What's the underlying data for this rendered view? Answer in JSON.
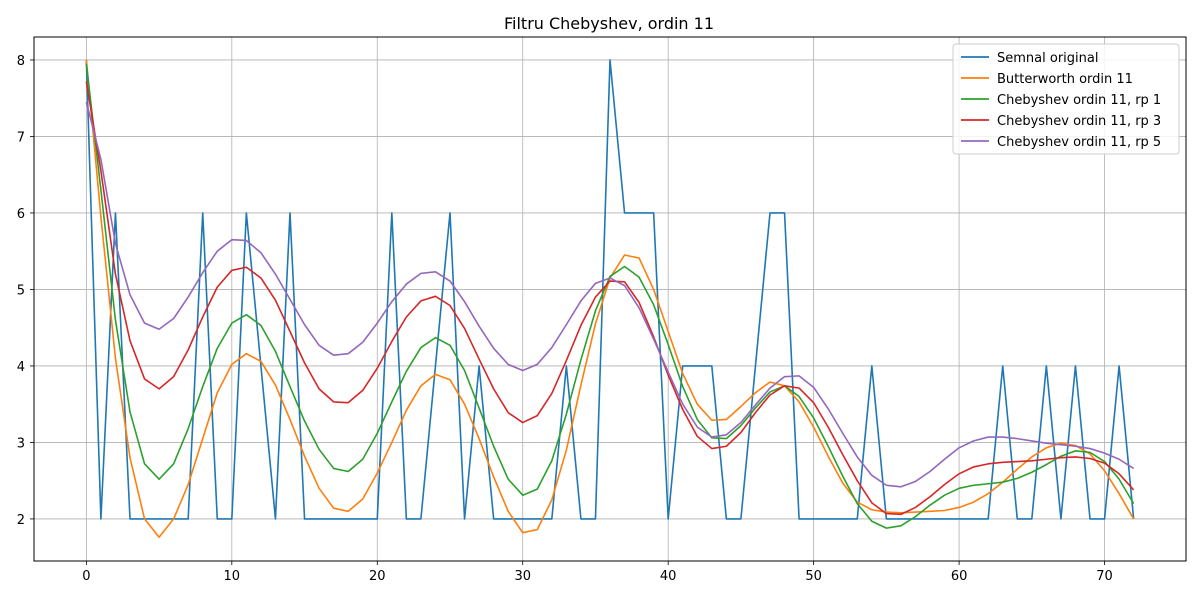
{
  "chart_data": {
    "type": "line",
    "title": "Filtru Chebyshev, ordin 11",
    "xlabel": "",
    "ylabel": "",
    "xlim": [
      -3.6,
      75.6
    ],
    "ylim": [
      1.45,
      8.3
    ],
    "xticks": [
      0,
      10,
      20,
      30,
      40,
      50,
      60,
      70
    ],
    "yticks": [
      2,
      3,
      4,
      5,
      6,
      7,
      8
    ],
    "grid": true,
    "legend_position": "top-right",
    "series": [
      {
        "name": "Semnal original",
        "color": "#1f77b4",
        "x": [
          0,
          1,
          2,
          3,
          4,
          5,
          6,
          7,
          8,
          9,
          10,
          11,
          12,
          13,
          14,
          15,
          16,
          17,
          18,
          19,
          20,
          21,
          22,
          23,
          24,
          25,
          26,
          27,
          28,
          29,
          30,
          31,
          32,
          33,
          34,
          35,
          36,
          37,
          38,
          39,
          40,
          41,
          42,
          43,
          44,
          45,
          46,
          47,
          48,
          49,
          50,
          51,
          52,
          53,
          54,
          55,
          56,
          57,
          58,
          59,
          60,
          61,
          62,
          63,
          64,
          65,
          66,
          67,
          68,
          69,
          70,
          71,
          72
        ],
        "y": [
          8,
          2,
          6,
          2,
          2,
          2,
          2,
          2,
          6,
          2,
          2,
          6,
          4,
          2,
          6,
          2,
          2,
          2,
          2,
          2,
          2,
          6,
          2,
          2,
          4,
          6,
          2,
          4,
          2,
          2,
          2,
          2,
          2,
          4,
          2,
          2,
          8,
          6,
          6,
          6,
          2,
          4,
          4,
          4,
          2,
          2,
          4,
          6,
          6,
          2,
          2,
          2,
          2,
          2,
          4,
          2,
          2,
          2,
          2,
          2,
          2,
          2,
          2,
          4,
          2,
          2,
          4,
          2,
          4,
          2,
          2,
          4,
          2
        ]
      },
      {
        "name": "Butterworth ordin 11",
        "color": "#ff7f0e",
        "x": [
          0,
          1,
          2,
          3,
          4,
          5,
          6,
          7,
          8,
          9,
          10,
          11,
          12,
          13,
          14,
          15,
          16,
          17,
          18,
          19,
          20,
          21,
          22,
          23,
          24,
          25,
          26,
          27,
          28,
          29,
          30,
          31,
          32,
          33,
          34,
          35,
          36,
          37,
          38,
          39,
          40,
          41,
          42,
          43,
          44,
          45,
          46,
          47,
          48,
          49,
          50,
          51,
          52,
          53,
          54,
          55,
          56,
          57,
          58,
          59,
          60,
          61,
          62,
          63,
          64,
          65,
          66,
          67,
          68,
          69,
          70,
          71,
          72
        ],
        "y": [
          8.0,
          5.95,
          4.1,
          2.8,
          2.0,
          1.76,
          2.0,
          2.45,
          3.05,
          3.65,
          4.02,
          4.16,
          4.06,
          3.75,
          3.3,
          2.82,
          2.4,
          2.14,
          2.1,
          2.26,
          2.6,
          3.0,
          3.42,
          3.74,
          3.89,
          3.82,
          3.5,
          3.05,
          2.55,
          2.1,
          1.82,
          1.86,
          2.25,
          2.9,
          3.75,
          4.55,
          5.15,
          5.45,
          5.41,
          5.0,
          4.45,
          3.9,
          3.5,
          3.29,
          3.3,
          3.47,
          3.65,
          3.79,
          3.74,
          3.53,
          3.2,
          2.82,
          2.47,
          2.22,
          2.12,
          2.09,
          2.08,
          2.09,
          2.1,
          2.11,
          2.15,
          2.22,
          2.33,
          2.48,
          2.65,
          2.81,
          2.93,
          2.99,
          2.96,
          2.85,
          2.63,
          2.33,
          2.0
        ]
      },
      {
        "name": "Chebyshev ordin 11, rp 1",
        "color": "#2ca02c",
        "x": [
          0,
          1,
          2,
          3,
          4,
          5,
          6,
          7,
          8,
          9,
          10,
          11,
          12,
          13,
          14,
          15,
          16,
          17,
          18,
          19,
          20,
          21,
          22,
          23,
          24,
          25,
          26,
          27,
          28,
          29,
          30,
          31,
          32,
          33,
          34,
          35,
          36,
          37,
          38,
          39,
          40,
          41,
          42,
          43,
          44,
          45,
          46,
          47,
          48,
          49,
          50,
          51,
          52,
          53,
          54,
          55,
          56,
          57,
          58,
          59,
          60,
          61,
          62,
          63,
          64,
          65,
          66,
          67,
          68,
          69,
          70,
          71,
          72
        ],
        "y": [
          7.95,
          6.3,
          4.6,
          3.4,
          2.72,
          2.52,
          2.72,
          3.18,
          3.73,
          4.23,
          4.56,
          4.67,
          4.53,
          4.19,
          3.73,
          3.28,
          2.91,
          2.66,
          2.62,
          2.78,
          3.12,
          3.53,
          3.93,
          4.24,
          4.37,
          4.27,
          3.94,
          3.45,
          2.95,
          2.52,
          2.31,
          2.39,
          2.76,
          3.37,
          4.08,
          4.72,
          5.17,
          5.3,
          5.16,
          4.8,
          4.28,
          3.73,
          3.3,
          3.06,
          3.05,
          3.22,
          3.45,
          3.66,
          3.74,
          3.6,
          3.32,
          2.95,
          2.56,
          2.2,
          1.97,
          1.88,
          1.91,
          2.03,
          2.18,
          2.31,
          2.4,
          2.44,
          2.46,
          2.48,
          2.53,
          2.61,
          2.71,
          2.82,
          2.89,
          2.87,
          2.75,
          2.52,
          2.2
        ]
      },
      {
        "name": "Chebyshev ordin 11, rp 3",
        "color": "#d62728",
        "x": [
          0,
          1,
          2,
          3,
          4,
          5,
          6,
          7,
          8,
          9,
          10,
          11,
          12,
          13,
          14,
          15,
          16,
          17,
          18,
          19,
          20,
          21,
          22,
          23,
          24,
          25,
          26,
          27,
          28,
          29,
          30,
          31,
          32,
          33,
          34,
          35,
          36,
          37,
          38,
          39,
          40,
          41,
          42,
          43,
          44,
          45,
          46,
          47,
          48,
          49,
          50,
          51,
          52,
          53,
          54,
          55,
          56,
          57,
          58,
          59,
          60,
          61,
          62,
          63,
          64,
          65,
          66,
          67,
          68,
          69,
          70,
          71,
          72
        ],
        "y": [
          7.72,
          6.55,
          5.2,
          4.33,
          3.83,
          3.7,
          3.86,
          4.21,
          4.64,
          5.03,
          5.25,
          5.29,
          5.15,
          4.86,
          4.45,
          4.04,
          3.7,
          3.53,
          3.52,
          3.68,
          3.97,
          4.32,
          4.64,
          4.85,
          4.91,
          4.79,
          4.49,
          4.09,
          3.7,
          3.39,
          3.26,
          3.35,
          3.64,
          4.07,
          4.53,
          4.9,
          5.11,
          5.1,
          4.83,
          4.38,
          3.88,
          3.43,
          3.08,
          2.92,
          2.95,
          3.13,
          3.39,
          3.62,
          3.74,
          3.71,
          3.52,
          3.2,
          2.84,
          2.5,
          2.21,
          2.07,
          2.06,
          2.15,
          2.29,
          2.45,
          2.59,
          2.68,
          2.72,
          2.74,
          2.75,
          2.76,
          2.78,
          2.8,
          2.81,
          2.79,
          2.73,
          2.59,
          2.38
        ]
      },
      {
        "name": "Chebyshev ordin 11, rp 5",
        "color": "#9467bd",
        "x": [
          0,
          1,
          2,
          3,
          4,
          5,
          6,
          7,
          8,
          9,
          10,
          11,
          12,
          13,
          14,
          15,
          16,
          17,
          18,
          19,
          20,
          21,
          22,
          23,
          24,
          25,
          26,
          27,
          28,
          29,
          30,
          31,
          32,
          33,
          34,
          35,
          36,
          37,
          38,
          39,
          40,
          41,
          42,
          43,
          44,
          45,
          46,
          47,
          48,
          49,
          50,
          51,
          52,
          53,
          54,
          55,
          56,
          57,
          58,
          59,
          60,
          61,
          62,
          63,
          64,
          65,
          66,
          67,
          68,
          69,
          70,
          71,
          72
        ],
        "y": [
          7.45,
          6.7,
          5.6,
          4.93,
          4.56,
          4.48,
          4.62,
          4.9,
          5.22,
          5.5,
          5.65,
          5.64,
          5.48,
          5.2,
          4.87,
          4.54,
          4.27,
          4.14,
          4.16,
          4.31,
          4.56,
          4.84,
          5.07,
          5.21,
          5.23,
          5.11,
          4.84,
          4.52,
          4.23,
          4.02,
          3.94,
          4.02,
          4.24,
          4.54,
          4.85,
          5.08,
          5.15,
          5.05,
          4.76,
          4.35,
          3.92,
          3.5,
          3.2,
          3.07,
          3.1,
          3.26,
          3.49,
          3.71,
          3.86,
          3.87,
          3.72,
          3.44,
          3.12,
          2.81,
          2.57,
          2.44,
          2.42,
          2.49,
          2.62,
          2.78,
          2.93,
          3.02,
          3.07,
          3.07,
          3.05,
          3.02,
          2.99,
          2.97,
          2.95,
          2.92,
          2.86,
          2.78,
          2.66
        ]
      }
    ]
  }
}
